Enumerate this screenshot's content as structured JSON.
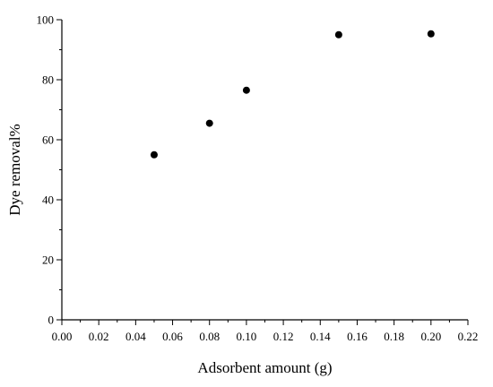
{
  "chart_data": {
    "type": "scatter",
    "title": "",
    "xlabel": "Adsorbent amount (g)",
    "ylabel": "Dye removal%",
    "xlim": [
      0.0,
      0.22
    ],
    "ylim": [
      0,
      100
    ],
    "xticks": [
      "0.00",
      "0.02",
      "0.04",
      "0.06",
      "0.08",
      "0.10",
      "0.12",
      "0.14",
      "0.16",
      "0.18",
      "0.20",
      "0.22"
    ],
    "yticks": [
      "0",
      "20",
      "40",
      "60",
      "80",
      "100"
    ],
    "grid": false,
    "legend": "none",
    "series": [
      {
        "x": [
          0.05,
          0.08,
          0.1,
          0.15,
          0.2
        ],
        "y": [
          55.0,
          65.5,
          76.5,
          95.0,
          95.3
        ],
        "color": "#000000",
        "marker": "circle"
      }
    ]
  }
}
